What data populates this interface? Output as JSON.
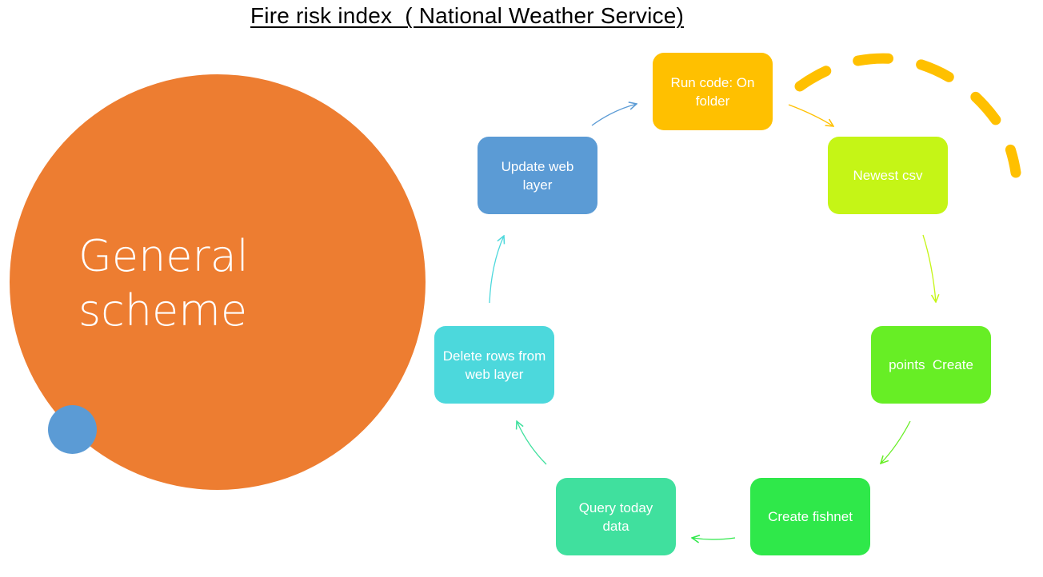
{
  "title": "Fire risk index  ( National Weather Service)",
  "center": {
    "label_line1": "General",
    "label_line2": "scheme",
    "color": "#ED7D31",
    "dot_color": "#5B9BD5"
  },
  "steps": [
    {
      "label": "Run code: On folder",
      "color": "#FFC000"
    },
    {
      "label": "Newest csv",
      "color": "#C5F516"
    },
    {
      "label": "points  Create",
      "color": "#67EE25"
    },
    {
      "label": "Create fishnet",
      "color": "#2FE84A"
    },
    {
      "label": "Query today data",
      "color": "#40E09E"
    },
    {
      "label": "Delete rows from web layer",
      "color": "#4CD8DC"
    },
    {
      "label": "Update web layer",
      "color": "#5B9BD5"
    }
  ],
  "dashed_arc_color": "#FFC000"
}
